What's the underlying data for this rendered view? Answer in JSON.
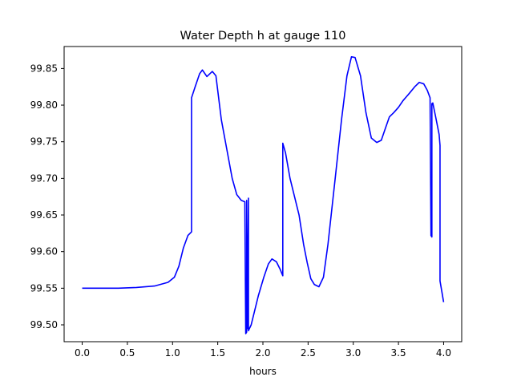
{
  "chart_data": {
    "type": "line",
    "title": "Water Depth h at gauge 110",
    "xlabel": "hours",
    "ylabel": "",
    "xlim": [
      -0.2,
      4.2
    ],
    "ylim": [
      99.477,
      99.88
    ],
    "xticks": [
      0.0,
      0.5,
      1.0,
      1.5,
      2.0,
      2.5,
      3.0,
      3.5,
      4.0
    ],
    "xtick_labels": [
      "0.0",
      "0.5",
      "1.0",
      "1.5",
      "2.0",
      "2.5",
      "3.0",
      "3.5",
      "4.0"
    ],
    "yticks": [
      99.5,
      99.55,
      99.6,
      99.65,
      99.7,
      99.75,
      99.8,
      99.85
    ],
    "ytick_labels": [
      "99.50",
      "99.55",
      "99.60",
      "99.65",
      "99.70",
      "99.75",
      "99.80",
      "99.85"
    ],
    "grid": false,
    "legend": "none",
    "series": [
      {
        "color": "#0000ff",
        "points": [
          [
            0.0,
            99.55
          ],
          [
            0.4,
            99.55
          ],
          [
            0.6,
            99.551
          ],
          [
            0.8,
            99.553
          ],
          [
            0.95,
            99.558
          ],
          [
            1.02,
            99.565
          ],
          [
            1.07,
            99.58
          ],
          [
            1.12,
            99.605
          ],
          [
            1.17,
            99.622
          ],
          [
            1.21,
            99.627
          ],
          [
            1.21,
            99.81
          ],
          [
            1.25,
            99.825
          ],
          [
            1.3,
            99.843
          ],
          [
            1.33,
            99.848
          ],
          [
            1.38,
            99.839
          ],
          [
            1.44,
            99.846
          ],
          [
            1.48,
            99.84
          ],
          [
            1.54,
            99.78
          ],
          [
            1.6,
            99.74
          ],
          [
            1.66,
            99.7
          ],
          [
            1.71,
            99.678
          ],
          [
            1.76,
            99.67
          ],
          [
            1.8,
            99.668
          ],
          [
            1.81,
            99.488
          ],
          [
            1.82,
            99.49
          ],
          [
            1.82,
            99.67
          ],
          [
            1.83,
            99.495
          ],
          [
            1.84,
            99.673
          ],
          [
            1.84,
            99.492
          ],
          [
            1.87,
            99.5
          ],
          [
            1.9,
            99.515
          ],
          [
            1.95,
            99.54
          ],
          [
            2.01,
            99.565
          ],
          [
            2.06,
            99.583
          ],
          [
            2.1,
            99.59
          ],
          [
            2.15,
            99.586
          ],
          [
            2.19,
            99.576
          ],
          [
            2.22,
            99.567
          ],
          [
            2.22,
            99.748
          ],
          [
            2.25,
            99.735
          ],
          [
            2.3,
            99.7
          ],
          [
            2.35,
            99.675
          ],
          [
            2.4,
            99.65
          ],
          [
            2.45,
            99.61
          ],
          [
            2.49,
            99.585
          ],
          [
            2.53,
            99.563
          ],
          [
            2.57,
            99.555
          ],
          [
            2.62,
            99.552
          ],
          [
            2.67,
            99.565
          ],
          [
            2.72,
            99.61
          ],
          [
            2.8,
            99.7
          ],
          [
            2.87,
            99.78
          ],
          [
            2.93,
            99.84
          ],
          [
            2.98,
            99.866
          ],
          [
            3.02,
            99.865
          ],
          [
            3.08,
            99.84
          ],
          [
            3.14,
            99.79
          ],
          [
            3.2,
            99.755
          ],
          [
            3.26,
            99.749
          ],
          [
            3.31,
            99.752
          ],
          [
            3.36,
            99.77
          ],
          [
            3.4,
            99.784
          ],
          [
            3.45,
            99.79
          ],
          [
            3.5,
            99.797
          ],
          [
            3.55,
            99.806
          ],
          [
            3.62,
            99.816
          ],
          [
            3.68,
            99.825
          ],
          [
            3.73,
            99.831
          ],
          [
            3.78,
            99.829
          ],
          [
            3.82,
            99.82
          ],
          [
            3.85,
            99.81
          ],
          [
            3.86,
            99.622
          ],
          [
            3.87,
            99.62
          ],
          [
            3.87,
            99.802
          ],
          [
            3.88,
            99.803
          ],
          [
            3.91,
            99.785
          ],
          [
            3.95,
            99.76
          ],
          [
            3.96,
            99.745
          ],
          [
            3.96,
            99.56
          ],
          [
            4.0,
            99.531
          ]
        ]
      }
    ]
  }
}
